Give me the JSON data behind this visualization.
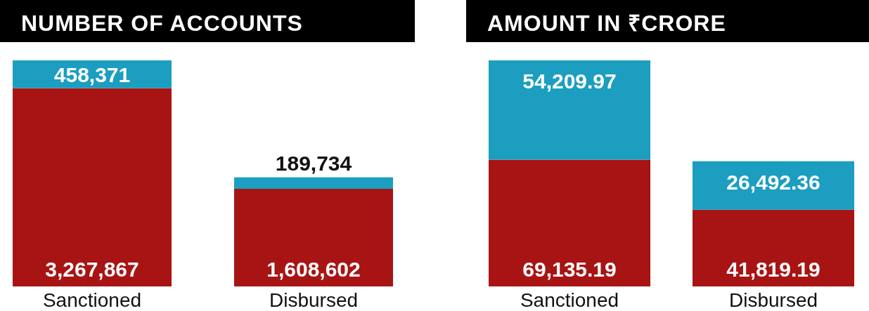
{
  "chart_data": [
    {
      "type": "bar",
      "title": "NUMBER OF ACCOUNTS",
      "categories": [
        "Sanctioned",
        "Disbursed"
      ],
      "stacked": true,
      "series": [
        {
          "color": "#a81414",
          "values": [
            3267867,
            1608602
          ],
          "value_labels": [
            "3,267,867",
            "1,608,602"
          ]
        },
        {
          "color": "#1b9ec0",
          "values": [
            458371,
            189734
          ],
          "value_labels": [
            "458,371",
            "189,734"
          ]
        }
      ]
    },
    {
      "type": "bar",
      "title": "AMOUNT IN ₹CRORE",
      "categories": [
        "Sanctioned",
        "Disbursed"
      ],
      "stacked": true,
      "series": [
        {
          "color": "#a81414",
          "values": [
            69135.19,
            41819.19
          ],
          "value_labels": [
            "69,135.19",
            "41,819.19"
          ]
        },
        {
          "type": "bar",
          "color": "#1b9ec0",
          "values": [
            54209.97,
            26492.36
          ],
          "value_labels": [
            "54,209.97",
            "26,492.36"
          ]
        }
      ]
    }
  ]
}
